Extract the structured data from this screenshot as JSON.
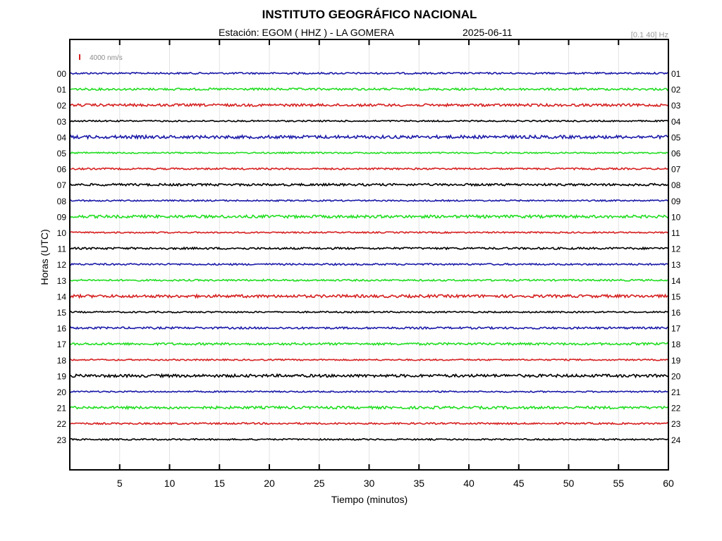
{
  "header": {
    "title": "INSTITUTO GEOGRÁFICO NACIONAL",
    "station_label": "Estación:  EGOM ( HHZ ) - LA GOMERA",
    "date": "2025-06-11",
    "filter": "[0.1 40] Hz",
    "scale": "4000 nm/s",
    "scale_color": "#d62020"
  },
  "chart_data": {
    "type": "line",
    "title": "INSTITUTO GEOGRÁFICO NACIONAL",
    "xlabel": "Tiempo (minutos)",
    "ylabel": "Horas (UTC)",
    "xlim": [
      0,
      60
    ],
    "x_ticks": [
      "5",
      "10",
      "15",
      "20",
      "25",
      "30",
      "35",
      "40",
      "45",
      "50",
      "55",
      "60"
    ],
    "x_tick_values": [
      5,
      10,
      15,
      20,
      25,
      30,
      35,
      40,
      45,
      50,
      55,
      60
    ],
    "grid": true,
    "left_hour_labels": [
      "00",
      "01",
      "02",
      "03",
      "04",
      "05",
      "06",
      "07",
      "08",
      "09",
      "10",
      "11",
      "12",
      "13",
      "14",
      "15",
      "16",
      "17",
      "18",
      "19",
      "20",
      "21",
      "22",
      "23"
    ],
    "right_hour_labels": [
      "01",
      "02",
      "03",
      "04",
      "05",
      "06",
      "07",
      "08",
      "09",
      "10",
      "11",
      "12",
      "13",
      "14",
      "15",
      "16",
      "17",
      "18",
      "19",
      "20",
      "21",
      "22",
      "23",
      "24"
    ],
    "trace_colors": [
      "#1a1aa8",
      "#22dd22",
      "#d62020",
      "#000000"
    ],
    "noise_amplitude": [
      1.2,
      1.5,
      1.8,
      1.0,
      2.2,
      1.0,
      1.2,
      1.6,
      1.0,
      2.0,
      1.0,
      1.4,
      1.2,
      1.2,
      2.0,
      1.0,
      1.4,
      1.6,
      1.0,
      2.0,
      1.0,
      1.8,
      1.2,
      1.0
    ]
  }
}
